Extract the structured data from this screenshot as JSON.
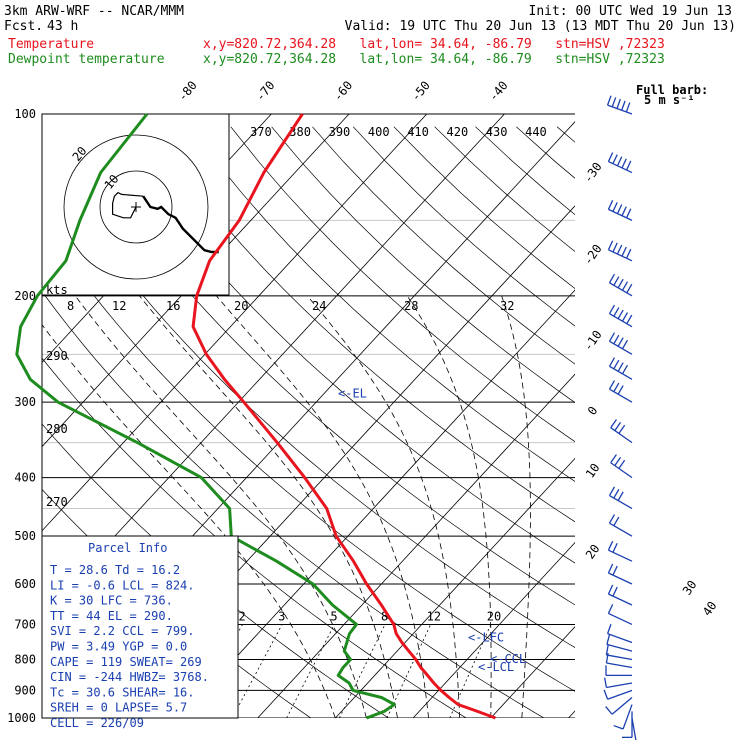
{
  "header": {
    "model": "3km ARW-WRF -- NCAR/MMM",
    "init": "Init: 00 UTC Wed 19 Jun 13",
    "fcst_label": "Fcst.",
    "fcst_value": "43 h",
    "valid": "Valid: 19 UTC Thu 20 Jun 13 (13 MDT Thu 20 Jun 13)"
  },
  "legend": [
    {
      "name": "Temperature",
      "loc": "x,y=820.72,364.28   lat,lon= 34.64, -86.79   stn=HSV ,72323",
      "color": "#e8141e"
    },
    {
      "name": "Dewpoint temperature",
      "loc": "x,y=820.72,364.28   lat,lon= 34.64, -86.79   stn=HSV ,72323",
      "color": "#1e8c1e"
    }
  ],
  "barb_legend": {
    "line1": "Full barb:",
    "line2": "5 m s⁻¹"
  },
  "hodograph": {
    "kts_label": "kts",
    "speed_ring_labels": [
      "8",
      "12",
      "16",
      "20",
      "24",
      "28",
      "32"
    ],
    "ring_small": "10",
    "ring_large": "20"
  },
  "markers": {
    "el": "<-EL",
    "lfc": "<-LFC",
    "ccl": "<-CCL",
    "lcl": "<-LCL"
  },
  "parcel": {
    "title": "Parcel Info",
    "rows": [
      "T  =   28.6  Td =  16.2",
      "LI =   -0.6  LCL =  824.",
      "K  =     30  LFC =  736.",
      "TT =     44  EL  =  290.",
      "SVI =   2.2  CCL =  799.",
      "PW =   3.49  YGP =   0.0",
      "CAPE =  119  SWEAT=  269",
      "CIN = -244  HWBZ= 3768.",
      "Tc =   30.6  SHEAR=   16.",
      "SREH =    0  LAPSE=   5.7",
      "CELL = 226/09"
    ]
  },
  "colors": {
    "temperature": "#e8141e",
    "dewpoint": "#1e8c1e",
    "parcel_text": "#1a3fb0",
    "barbs": "#1a3fb0"
  },
  "chart_data": {
    "type": "line",
    "title": "",
    "y_axis": {
      "label": "",
      "scale": "log",
      "ticks": [
        100,
        200,
        300,
        400,
        500,
        600,
        700,
        800,
        900,
        1000
      ]
    },
    "top_temperature_ticks": [
      "-80",
      "-70",
      "-60",
      "-50",
      "-40"
    ],
    "right_temperature_ticks": [
      "-30",
      "-20",
      "-10",
      "0",
      "10",
      "20",
      "30",
      "40"
    ],
    "theta_labels": [
      "370",
      "380",
      "390",
      "400",
      "410",
      "420",
      "430",
      "440"
    ],
    "theta_labels_left": [
      "290",
      "280",
      "270"
    ],
    "mixing_ratio_labels": [
      "2",
      "3",
      "5",
      "8",
      "12",
      "20"
    ],
    "series": [
      {
        "name": "Temperature",
        "p": [
          1000,
          975,
          950,
          925,
          900,
          875,
          850,
          825,
          800,
          775,
          750,
          725,
          700,
          650,
          600,
          550,
          500,
          450,
          400,
          350,
          300,
          275,
          250,
          225,
          200,
          175,
          150,
          125,
          100
        ],
        "t": [
          30.6,
          27.5,
          24.2,
          22.2,
          20.3,
          18.5,
          16.8,
          15.0,
          13.4,
          11.5,
          9.6,
          7.8,
          6.4,
          2.5,
          -1.9,
          -6.3,
          -11.5,
          -16.0,
          -22.5,
          -30.2,
          -39.3,
          -44.5,
          -49.8,
          -54.8,
          -58.0,
          -60.5,
          -61.5,
          -64.0,
          -66.0
        ]
      },
      {
        "name": "Dewpoint temperature",
        "p": [
          1000,
          975,
          950,
          925,
          900,
          875,
          850,
          825,
          800,
          775,
          750,
          725,
          700,
          650,
          600,
          550,
          500,
          450,
          400,
          350,
          300,
          275,
          250,
          225,
          200,
          175,
          150,
          125,
          100
        ],
        "t": [
          14.0,
          15.5,
          16.0,
          13.5,
          9.0,
          7.6,
          5.3,
          5.0,
          5.0,
          3.2,
          2.5,
          1.8,
          1.6,
          -3.8,
          -8.8,
          -16.2,
          -25.0,
          -28.5,
          -35.8,
          -48.2,
          -63.2,
          -69.5,
          -74.2,
          -77.0,
          -78.5,
          -79.0,
          -82.0,
          -85.0,
          -86.0
        ]
      }
    ],
    "hodograph_track": [
      [
        0,
        0
      ],
      [
        -1.5,
        -3
      ],
      [
        -3.5,
        -3
      ],
      [
        -6.5,
        -2
      ],
      [
        -6.5,
        1
      ],
      [
        -6,
        3
      ],
      [
        -5,
        4
      ],
      [
        -4,
        3.5
      ],
      [
        2,
        3
      ],
      [
        4,
        0
      ],
      [
        6,
        -0.5
      ],
      [
        7,
        0
      ],
      [
        9,
        -2
      ],
      [
        11,
        -3
      ],
      [
        13,
        -6
      ],
      [
        16,
        -9
      ],
      [
        19,
        -12
      ],
      [
        21,
        -12.5
      ],
      [
        23,
        -12.5
      ]
    ],
    "wind_barbs": [
      {
        "p": 1000,
        "spd": 3,
        "dir": 170
      },
      {
        "p": 975,
        "spd": 5,
        "dir": 180
      },
      {
        "p": 950,
        "spd": 5,
        "dir": 200
      },
      {
        "p": 925,
        "spd": 4,
        "dir": 230
      },
      {
        "p": 900,
        "spd": 4,
        "dir": 250
      },
      {
        "p": 875,
        "spd": 4,
        "dir": 260
      },
      {
        "p": 850,
        "spd": 5,
        "dir": 270
      },
      {
        "p": 825,
        "spd": 5,
        "dir": 280
      },
      {
        "p": 800,
        "spd": 6,
        "dir": 280
      },
      {
        "p": 775,
        "spd": 6,
        "dir": 285
      },
      {
        "p": 750,
        "spd": 7,
        "dir": 290
      },
      {
        "p": 700,
        "spd": 7,
        "dir": 295
      },
      {
        "p": 650,
        "spd": 8,
        "dir": 295
      },
      {
        "p": 600,
        "spd": 9,
        "dir": 295
      },
      {
        "p": 550,
        "spd": 10,
        "dir": 295
      },
      {
        "p": 500,
        "spd": 11,
        "dir": 300
      },
      {
        "p": 450,
        "spd": 13,
        "dir": 300
      },
      {
        "p": 400,
        "spd": 14,
        "dir": 305
      },
      {
        "p": 350,
        "spd": 15,
        "dir": 305
      },
      {
        "p": 300,
        "spd": 17,
        "dir": 300
      },
      {
        "p": 275,
        "spd": 19,
        "dir": 300
      },
      {
        "p": 250,
        "spd": 21,
        "dir": 300
      },
      {
        "p": 225,
        "spd": 23,
        "dir": 300
      },
      {
        "p": 200,
        "spd": 25,
        "dir": 300
      },
      {
        "p": 175,
        "spd": 26,
        "dir": 295
      },
      {
        "p": 150,
        "spd": 26,
        "dir": 295
      },
      {
        "p": 125,
        "spd": 25,
        "dir": 295
      },
      {
        "p": 100,
        "spd": 24,
        "dir": 290
      }
    ]
  }
}
